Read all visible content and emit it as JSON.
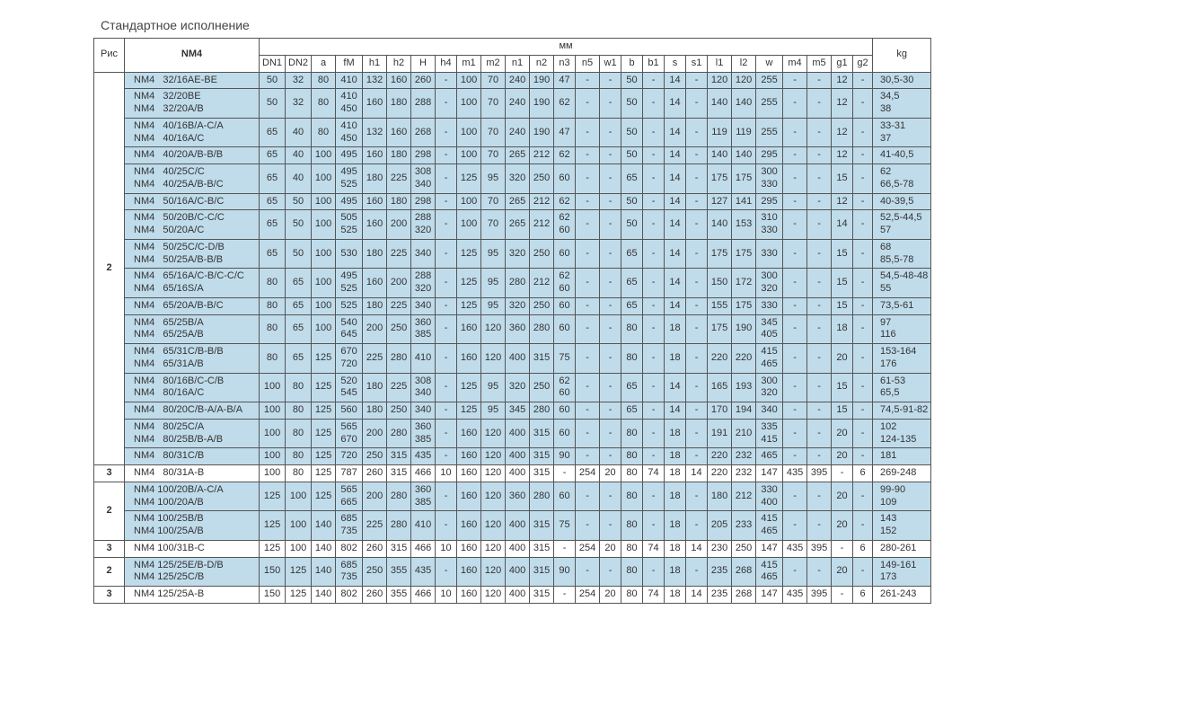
{
  "title": "Стандартное исполнение",
  "header": {
    "ris": "Рис",
    "nm4": "NM4",
    "mm": "мм",
    "kg": "kg",
    "cols": [
      "DN1",
      "DN2",
      "a",
      "fM",
      "h1",
      "h2",
      "H",
      "h4",
      "m1",
      "m2",
      "n1",
      "n2",
      "n3",
      "n5",
      "w1",
      "b",
      "b1",
      "s",
      "s1",
      "l1",
      "l2",
      "w",
      "m4",
      "m5",
      "g1",
      "g2"
    ]
  },
  "groups": [
    {
      "shade": "blue",
      "ris": "2",
      "rows": [
        {
          "model": "NM4   32/16AE-BE",
          "cells": [
            "50",
            "32",
            "80",
            "410",
            "132",
            "160",
            "260",
            "-",
            "100",
            "70",
            "240",
            "190",
            "47",
            "-",
            "-",
            "50",
            "-",
            "14",
            "-",
            "120",
            "120",
            "255",
            "-",
            "-",
            "12",
            "-"
          ],
          "kg": "30,5-30"
        },
        {
          "model": "NM4   32/20BE\nNM4   32/20A/B",
          "cells": [
            "50",
            "32",
            "80",
            "410\n450",
            "160",
            "180",
            "288",
            "-",
            "100",
            "70",
            "240",
            "190",
            "62",
            "-",
            "-",
            "50",
            "-",
            "14",
            "-",
            "140",
            "140",
            "255",
            "-",
            "-",
            "12",
            "-"
          ],
          "kg": "34,5\n38"
        },
        {
          "model": "NM4   40/16B/A-C/A\nNM4   40/16A/C",
          "cells": [
            "65",
            "40",
            "80",
            "410\n450",
            "132",
            "160",
            "268",
            "-",
            "100",
            "70",
            "240",
            "190",
            "47",
            "-",
            "-",
            "50",
            "-",
            "14",
            "-",
            "119",
            "119",
            "255",
            "-",
            "-",
            "12",
            "-"
          ],
          "kg": "33-31\n37"
        },
        {
          "model": "NM4   40/20A/B-B/B",
          "cells": [
            "65",
            "40",
            "100",
            "495",
            "160",
            "180",
            "298",
            "-",
            "100",
            "70",
            "265",
            "212",
            "62",
            "-",
            "-",
            "50",
            "-",
            "14",
            "-",
            "140",
            "140",
            "295",
            "-",
            "-",
            "12",
            "-"
          ],
          "kg": "41-40,5"
        },
        {
          "model": "NM4   40/25C/C\nNM4   40/25A/B-B/C",
          "cells": [
            "65",
            "40",
            "100",
            "495\n525",
            "180",
            "225",
            "308\n340",
            "-",
            "125",
            "95",
            "320",
            "250",
            "60",
            "-",
            "-",
            "65",
            "-",
            "14",
            "-",
            "175",
            "175",
            "300\n330",
            "-",
            "-",
            "15",
            "-"
          ],
          "kg": "62\n66,5-78"
        },
        {
          "model": "NM4   50/16A/C-B/C",
          "cells": [
            "65",
            "50",
            "100",
            "495",
            "160",
            "180",
            "298",
            "-",
            "100",
            "70",
            "265",
            "212",
            "62",
            "-",
            "-",
            "50",
            "-",
            "14",
            "-",
            "127",
            "141",
            "295",
            "-",
            "-",
            "12",
            "-"
          ],
          "kg": "40-39,5"
        },
        {
          "model": "NM4   50/20B/C-C/C\nNM4   50/20A/C",
          "cells": [
            "65",
            "50",
            "100",
            "505\n525",
            "160",
            "200",
            "288\n320",
            "-",
            "100",
            "70",
            "265",
            "212",
            "62\n60",
            "-",
            "-",
            "50",
            "-",
            "14",
            "-",
            "140",
            "153",
            "310\n330",
            "-",
            "-",
            "14",
            "-"
          ],
          "kg": "52,5-44,5\n57"
        },
        {
          "model": "NM4   50/25C/C-D/B\nNM4   50/25A/B-B/B",
          "cells": [
            "65",
            "50",
            "100",
            "530",
            "180",
            "225",
            "340",
            "-",
            "125",
            "95",
            "320",
            "250",
            "60",
            "-",
            "-",
            "65",
            "-",
            "14",
            "-",
            "175",
            "175",
            "330",
            "-",
            "-",
            "15",
            "-"
          ],
          "kg": "68\n85,5-78"
        },
        {
          "model": "NM4   65/16A/C-B/C-C/C\nNM4   65/16S/A",
          "cells": [
            "80",
            "65",
            "100",
            "495\n525",
            "160",
            "200",
            "288\n320",
            "-",
            "125",
            "95",
            "280",
            "212",
            "62\n60",
            "-",
            "-",
            "65",
            "-",
            "14",
            "-",
            "150",
            "172",
            "300\n320",
            "-",
            "-",
            "15",
            "-"
          ],
          "kg": "54,5-48-48\n55"
        },
        {
          "model": "NM4   65/20A/B-B/C",
          "cells": [
            "80",
            "65",
            "100",
            "525",
            "180",
            "225",
            "340",
            "-",
            "125",
            "95",
            "320",
            "250",
            "60",
            "-",
            "-",
            "65",
            "-",
            "14",
            "-",
            "155",
            "175",
            "330",
            "-",
            "-",
            "15",
            "-"
          ],
          "kg": "73,5-61"
        },
        {
          "model": "NM4   65/25B/A\nNM4   65/25A/B",
          "cells": [
            "80",
            "65",
            "100",
            "540\n645",
            "200",
            "250",
            "360\n385",
            "-",
            "160",
            "120",
            "360",
            "280",
            "60",
            "-",
            "-",
            "80",
            "-",
            "18",
            "-",
            "175",
            "190",
            "345\n405",
            "-",
            "-",
            "18",
            "-"
          ],
          "kg": "97\n116"
        },
        {
          "model": "NM4   65/31C/B-B/B\nNM4   65/31A/B",
          "cells": [
            "80",
            "65",
            "125",
            "670\n720",
            "225",
            "280",
            "410",
            "-",
            "160",
            "120",
            "400",
            "315",
            "75",
            "-",
            "-",
            "80",
            "-",
            "18",
            "-",
            "220",
            "220",
            "415\n465",
            "-",
            "-",
            "20",
            "-"
          ],
          "kg": "153-164\n176"
        },
        {
          "model": "NM4   80/16B/C-C/B\nNM4   80/16A/C",
          "cells": [
            "100",
            "80",
            "125",
            "520\n545",
            "180",
            "225",
            "308\n340",
            "-",
            "125",
            "95",
            "320",
            "250",
            "62\n60",
            "-",
            "-",
            "65",
            "-",
            "14",
            "-",
            "165",
            "193",
            "300\n320",
            "-",
            "-",
            "15",
            "-"
          ],
          "kg": "61-53\n65,5"
        },
        {
          "model": "NM4   80/20C/B-A/A-B/A",
          "cells": [
            "100",
            "80",
            "125",
            "560",
            "180",
            "250",
            "340",
            "-",
            "125",
            "95",
            "345",
            "280",
            "60",
            "-",
            "-",
            "65",
            "-",
            "14",
            "-",
            "170",
            "194",
            "340",
            "-",
            "-",
            "15",
            "-"
          ],
          "kg": "74,5-91-82"
        },
        {
          "model": "NM4   80/25C/A\nNM4   80/25B/B-A/B",
          "cells": [
            "100",
            "80",
            "125",
            "565\n670",
            "200",
            "280",
            "360\n385",
            "-",
            "160",
            "120",
            "400",
            "315",
            "60",
            "-",
            "-",
            "80",
            "-",
            "18",
            "-",
            "191",
            "210",
            "335\n415",
            "-",
            "-",
            "20",
            "-"
          ],
          "kg": "102\n124-135"
        },
        {
          "model": "NM4   80/31C/B",
          "cells": [
            "100",
            "80",
            "125",
            "720",
            "250",
            "315",
            "435",
            "-",
            "160",
            "120",
            "400",
            "315",
            "90",
            "-",
            "-",
            "80",
            "-",
            "18",
            "-",
            "220",
            "232",
            "465",
            "-",
            "-",
            "20",
            "-"
          ],
          "kg": "181"
        }
      ]
    },
    {
      "shade": "white",
      "ris": "3",
      "rows": [
        {
          "model": "NM4   80/31A-B",
          "cells": [
            "100",
            "80",
            "125",
            "787",
            "260",
            "315",
            "466",
            "10",
            "160",
            "120",
            "400",
            "315",
            "-",
            "254",
            "20",
            "80",
            "74",
            "18",
            "14",
            "220",
            "232",
            "147",
            "435",
            "395",
            "-",
            "6"
          ],
          "kg": "269-248"
        }
      ]
    },
    {
      "shade": "blue",
      "ris": "2",
      "rows": [
        {
          "model": "NM4 100/20B/A-C/A\nNM4 100/20A/B",
          "cells": [
            "125",
            "100",
            "125",
            "565\n665",
            "200",
            "280",
            "360\n385",
            "-",
            "160",
            "120",
            "360",
            "280",
            "60",
            "-",
            "-",
            "80",
            "-",
            "18",
            "-",
            "180",
            "212",
            "330\n400",
            "-",
            "-",
            "20",
            "-"
          ],
          "kg": "99-90\n109"
        },
        {
          "model": "NM4 100/25B/B\nNM4 100/25A/B",
          "cells": [
            "125",
            "100",
            "140",
            "685\n735",
            "225",
            "280",
            "410",
            "-",
            "160",
            "120",
            "400",
            "315",
            "75",
            "-",
            "-",
            "80",
            "-",
            "18",
            "-",
            "205",
            "233",
            "415\n465",
            "-",
            "-",
            "20",
            "-"
          ],
          "kg": "143\n152"
        }
      ]
    },
    {
      "shade": "white",
      "ris": "3",
      "rows": [
        {
          "model": "NM4 100/31B-C",
          "cells": [
            "125",
            "100",
            "140",
            "802",
            "260",
            "315",
            "466",
            "10",
            "160",
            "120",
            "400",
            "315",
            "-",
            "254",
            "20",
            "80",
            "74",
            "18",
            "14",
            "230",
            "250",
            "147",
            "435",
            "395",
            "-",
            "6"
          ],
          "kg": "280-261"
        }
      ]
    },
    {
      "shade": "blue",
      "ris": "2",
      "rows": [
        {
          "model": "NM4 125/25E/B-D/B\nNM4 125/25C/B",
          "cells": [
            "150",
            "125",
            "140",
            "685\n735",
            "250",
            "355",
            "435",
            "-",
            "160",
            "120",
            "400",
            "315",
            "90",
            "-",
            "-",
            "80",
            "-",
            "18",
            "-",
            "235",
            "268",
            "415\n465",
            "-",
            "-",
            "20",
            "-"
          ],
          "kg": "149-161\n173"
        }
      ]
    },
    {
      "shade": "white",
      "ris": "3",
      "rows": [
        {
          "model": "NM4 125/25A-B",
          "cells": [
            "150",
            "125",
            "140",
            "802",
            "260",
            "355",
            "466",
            "10",
            "160",
            "120",
            "400",
            "315",
            "-",
            "254",
            "20",
            "80",
            "74",
            "18",
            "14",
            "235",
            "268",
            "147",
            "435",
            "395",
            "-",
            "6"
          ],
          "kg": "261-243"
        }
      ]
    }
  ]
}
